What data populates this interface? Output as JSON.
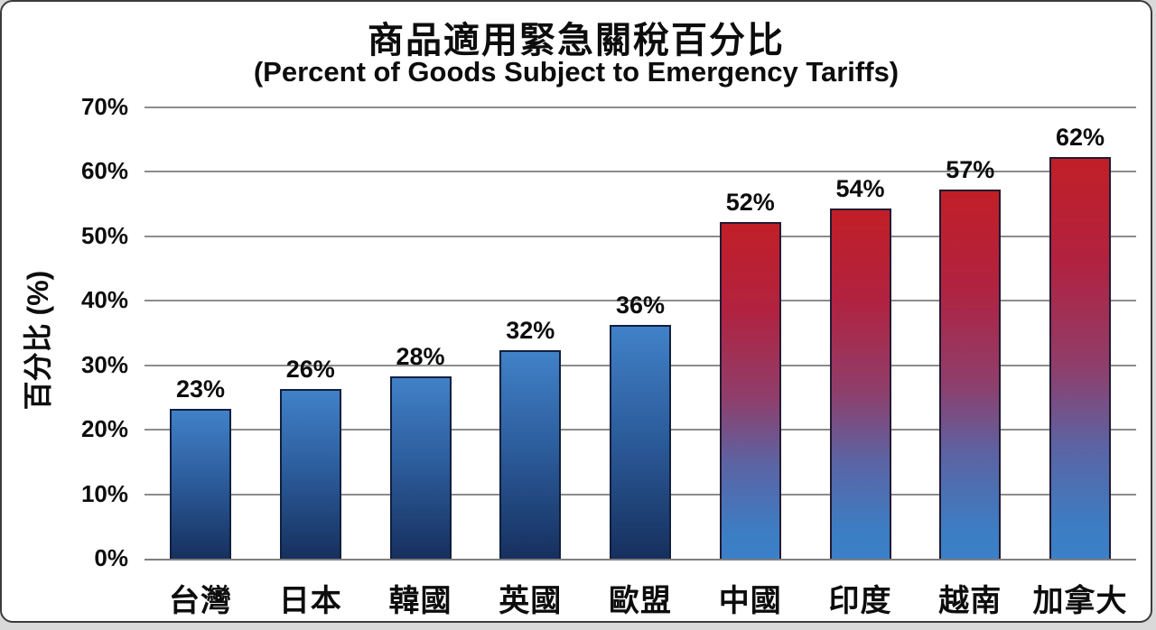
{
  "chart_data": {
    "type": "bar",
    "title_zh": "商品適用緊急關稅百分比",
    "title_en": "(Percent of Goods Subject to Emergency Tariffs)",
    "ylabel": "百分比 (%)",
    "xlabel": "",
    "categories": [
      "台灣",
      "日本",
      "韓國",
      "英國",
      "歐盟",
      "中國",
      "印度",
      "越南",
      "加拿大"
    ],
    "values": [
      23,
      26,
      28,
      32,
      36,
      52,
      54,
      57,
      62
    ],
    "value_labels": [
      "23%",
      "26%",
      "28%",
      "32%",
      "36%",
      "52%",
      "54%",
      "57%",
      "62%"
    ],
    "y_tick_values": [
      0,
      10,
      20,
      30,
      40,
      50,
      60,
      70
    ],
    "y_tick_labels": [
      "0%",
      "10%",
      "20%",
      "30%",
      "40%",
      "50%",
      "60%",
      "70%"
    ],
    "ylim": [
      0,
      70
    ],
    "grid": true,
    "legend": "none",
    "bar_style_keys": [
      "blue",
      "blue",
      "blue",
      "blue",
      "blue",
      "red_blue",
      "red_blue",
      "red_blue",
      "red_blue"
    ],
    "bar_styles": {
      "blue": {
        "border": "#101f3e",
        "stops": [
          "#4181c7 0%",
          "#2d5e9e 45%",
          "#16305e 100%"
        ]
      },
      "red_blue": {
        "border": "#221a33",
        "stops": [
          "#c11f27 0%",
          "#b12240 26%",
          "#8f3e6b 52%",
          "#5b64a4 72%",
          "#3c7dc3 92%",
          "#3a80c8 100%"
        ]
      }
    },
    "colors": {
      "gridline": "#8c8c8c",
      "baseline": "#7f7f7f",
      "text": "#0d0d0d",
      "background": "#ffffff",
      "frame_border": "#3c3c3c",
      "page_background": "#d9d9d9"
    }
  }
}
